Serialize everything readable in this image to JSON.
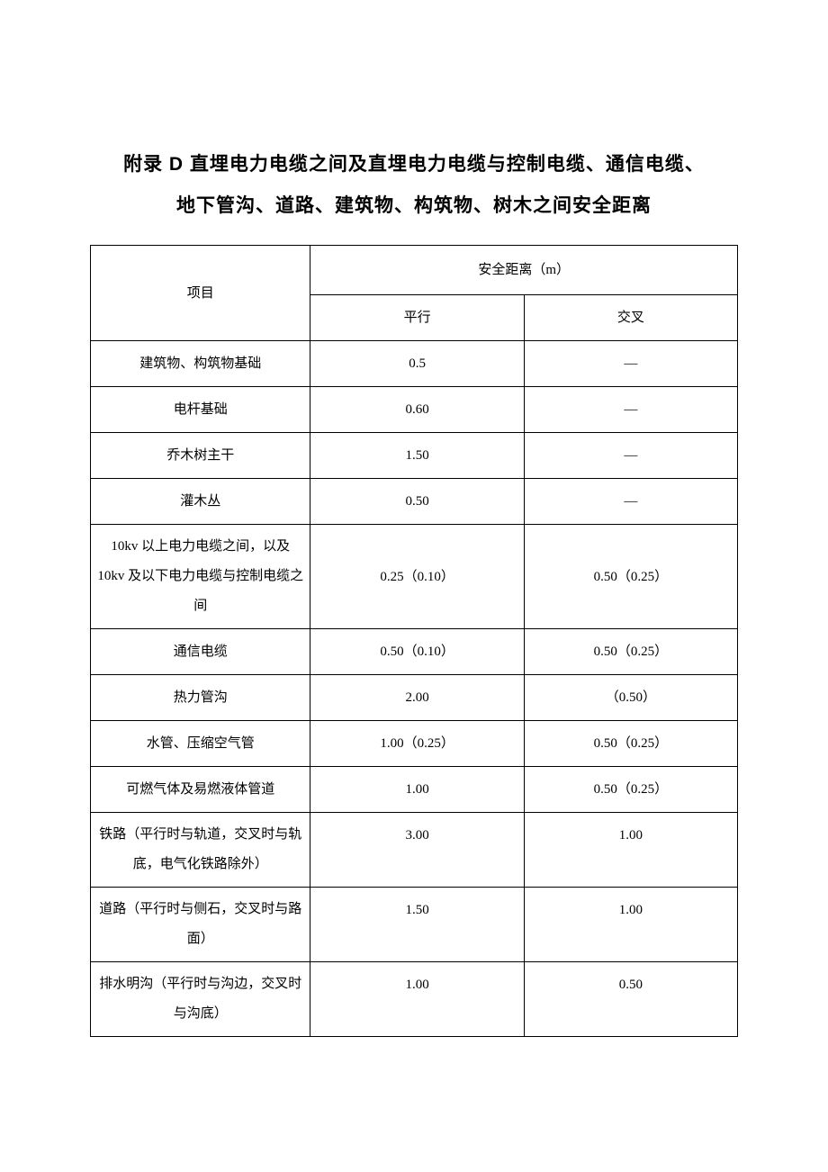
{
  "title_line1": "附录 D 直埋电力电缆之间及直埋电力电缆与控制电缆、通信电缆、",
  "title_line2": "地下管沟、道路、建筑物、构筑物、树木之间安全距离",
  "table": {
    "header": {
      "item": "项目",
      "safety_distance": "安全距离（m）",
      "parallel": "平行",
      "cross": "交叉"
    },
    "rows": [
      {
        "item": "建筑物、构筑物基础",
        "parallel": "0.5",
        "cross": "—"
      },
      {
        "item": "电杆基础",
        "parallel": "0.60",
        "cross": "—"
      },
      {
        "item": "乔木树主干",
        "parallel": "1.50",
        "cross": "—"
      },
      {
        "item": "灌木丛",
        "parallel": "0.50",
        "cross": "—"
      },
      {
        "item": "10kv 以上电力电缆之间，以及 10kv 及以下电力电缆与控制电缆之间",
        "parallel": "0.25（0.10）",
        "cross": "0.50（0.25）"
      },
      {
        "item": "通信电缆",
        "parallel": "0.50（0.10）",
        "cross": "0.50（0.25）"
      },
      {
        "item": "热力管沟",
        "parallel": "2.00",
        "cross": "（0.50）"
      },
      {
        "item": "水管、压缩空气管",
        "parallel": "1.00（0.25）",
        "cross": "0.50（0.25）"
      },
      {
        "item": "可燃气体及易燃液体管道",
        "parallel": "1.00",
        "cross": "0.50（0.25）"
      },
      {
        "item": "铁路（平行时与轨道，交叉时与轨底，电气化铁路除外）",
        "parallel": "3.00",
        "cross": "1.00"
      },
      {
        "item": "道路（平行时与侧石，交叉时与路面）",
        "parallel": "1.50",
        "cross": "1.00"
      },
      {
        "item": "排水明沟（平行时与沟边，交叉时与沟底）",
        "parallel": "1.00",
        "cross": "0.50"
      }
    ]
  }
}
